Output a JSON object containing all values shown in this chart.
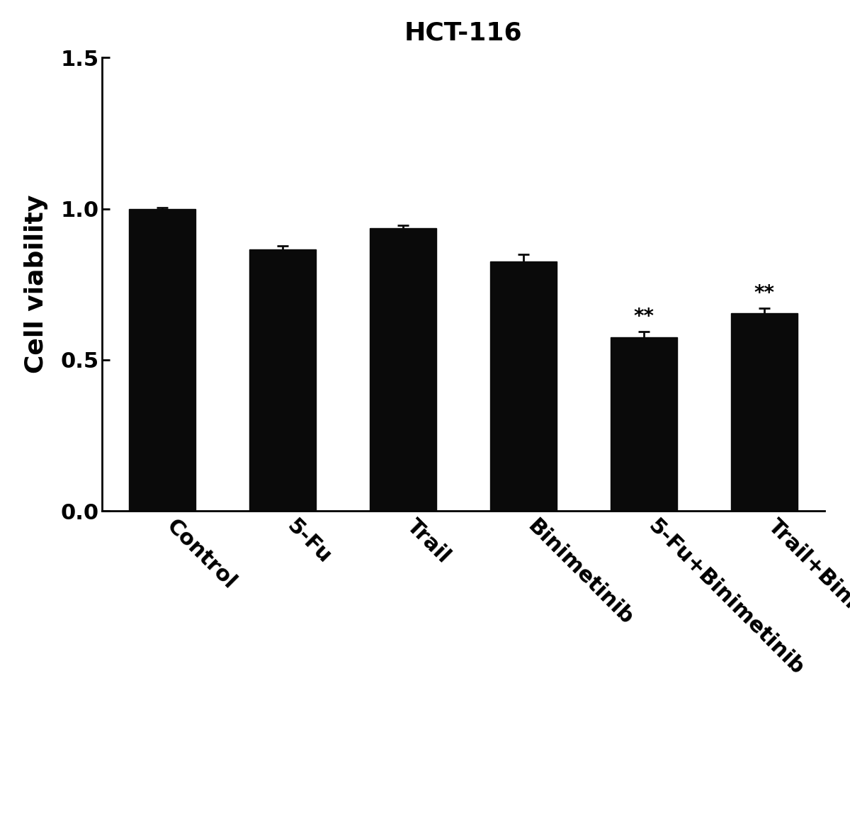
{
  "title": "HCT-116",
  "title_fontsize": 26,
  "title_fontweight": "bold",
  "categories": [
    "Control",
    "5-Fu",
    "Trail",
    "Binimetinib",
    "5-Fu+Binimetinib",
    "Trail+Binimetinib"
  ],
  "values": [
    1.0,
    0.865,
    0.935,
    0.825,
    0.575,
    0.655
  ],
  "errors": [
    0.003,
    0.012,
    0.01,
    0.025,
    0.018,
    0.015
  ],
  "bar_color": "#0a0a0a",
  "bar_width": 0.55,
  "ylabel": "Cell viability",
  "ylabel_fontsize": 26,
  "ylabel_fontweight": "bold",
  "ylim": [
    0,
    1.5
  ],
  "yticks": [
    0.0,
    0.5,
    1.0,
    1.5
  ],
  "ytick_labels": [
    "0.0",
    "0.5",
    "1.0",
    "1.5"
  ],
  "ytick_fontsize": 22,
  "xtick_fontsize": 22,
  "significance": [
    false,
    false,
    false,
    false,
    true,
    true
  ],
  "sig_label": "**",
  "sig_fontsize": 20,
  "background_color": "#ffffff",
  "spine_linewidth": 2.0,
  "error_capsize": 6,
  "error_linewidth": 2.0,
  "error_color": "#0a0a0a"
}
